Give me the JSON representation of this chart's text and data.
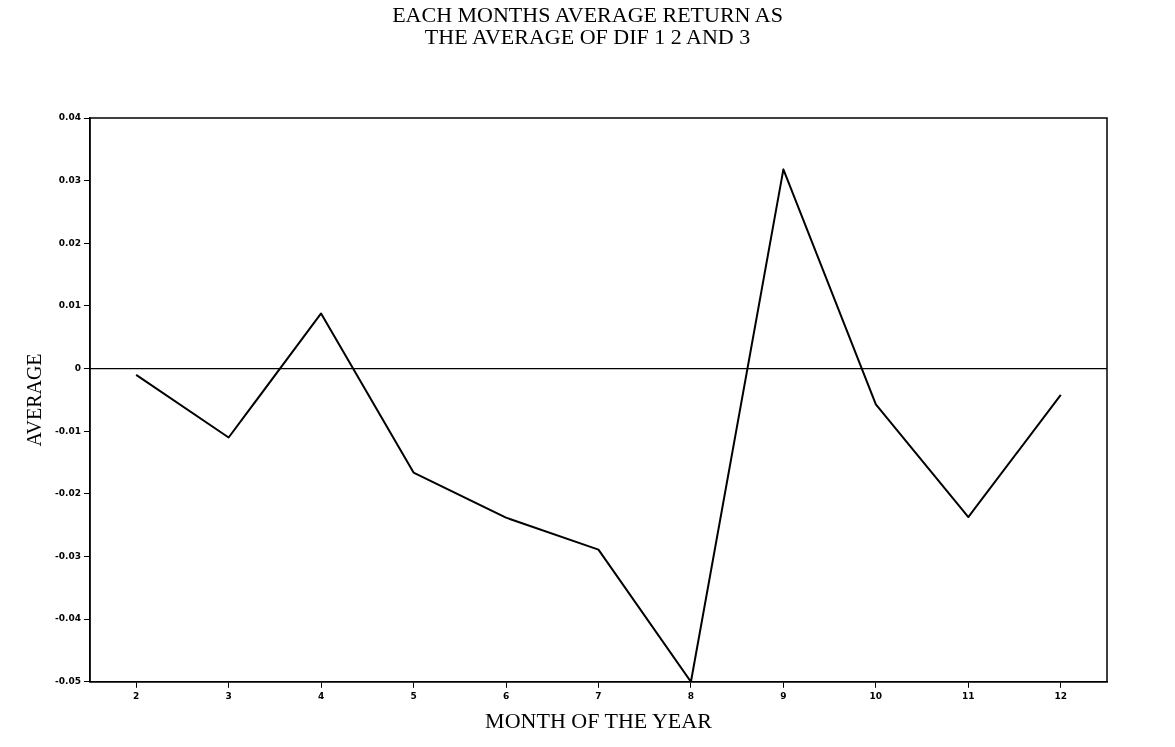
{
  "chart_data": {
    "type": "line",
    "title": "EACH MONTHS AVERAGE RETURN AS\nTHE AVERAGE OF DIF 1 2 AND 3",
    "xlabel": "MONTH OF THE YEAR",
    "ylabel": "AVERAGE",
    "x": [
      2,
      3,
      4,
      5,
      6,
      7,
      8,
      9,
      10,
      11,
      12
    ],
    "series": [
      {
        "color": "#000000",
        "values": [
          -0.001,
          -0.011,
          0.0088,
          -0.0166,
          -0.0238,
          -0.0289,
          -0.05,
          0.0318,
          -0.0057,
          -0.0237,
          -0.0042
        ]
      }
    ],
    "xlim": [
      1.5,
      12.5
    ],
    "xticks": [
      2,
      3,
      4,
      5,
      6,
      7,
      8,
      9,
      10,
      11,
      12
    ],
    "ylim": [
      -0.05,
      0.04
    ],
    "yticks": [
      -0.05,
      -0.04,
      -0.03,
      -0.02,
      -0.01,
      0,
      0.01,
      0.02,
      0.03,
      0.04
    ],
    "ref_lines": [
      {
        "axis": "y",
        "value": 0,
        "color": "#000000"
      }
    ],
    "grid": false,
    "legend": false,
    "marker": "none",
    "line_style": "solid"
  }
}
